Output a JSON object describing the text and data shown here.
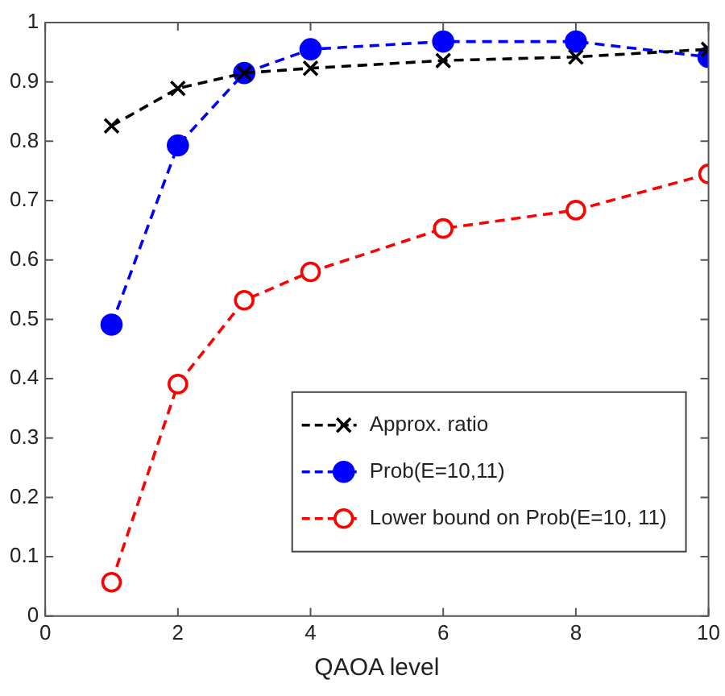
{
  "chart_data": {
    "type": "line",
    "xlabel": "QAOA level",
    "x": [
      1,
      2,
      3,
      4,
      6,
      8,
      10
    ],
    "xlim": [
      0,
      10
    ],
    "xticks": [
      0,
      2,
      4,
      6,
      8,
      10
    ],
    "ylim": [
      0,
      1
    ],
    "yticks": [
      0,
      0.1,
      0.2,
      0.3,
      0.4,
      0.5,
      0.6,
      0.7,
      0.8,
      0.9,
      1
    ],
    "grid": false,
    "legend": "bottom right",
    "line_style": "dashed",
    "series": [
      {
        "name": "Approx. ratio",
        "color": "#000000",
        "marker": "cross",
        "values": [
          0.826,
          0.889,
          0.915,
          0.923,
          0.936,
          0.942,
          0.955
        ]
      },
      {
        "name": "Prob(E=10,11)",
        "color": "#0000ff",
        "marker": "circle",
        "values": [
          0.491,
          0.793,
          0.915,
          0.955,
          0.968,
          0.968,
          0.942
        ]
      },
      {
        "name": "Lower bound on Prob(E=10, 11)",
        "color": "#ff0000",
        "marker": "open circle",
        "values": [
          0.057,
          0.391,
          0.532,
          0.58,
          0.653,
          0.684,
          0.745
        ]
      }
    ]
  }
}
